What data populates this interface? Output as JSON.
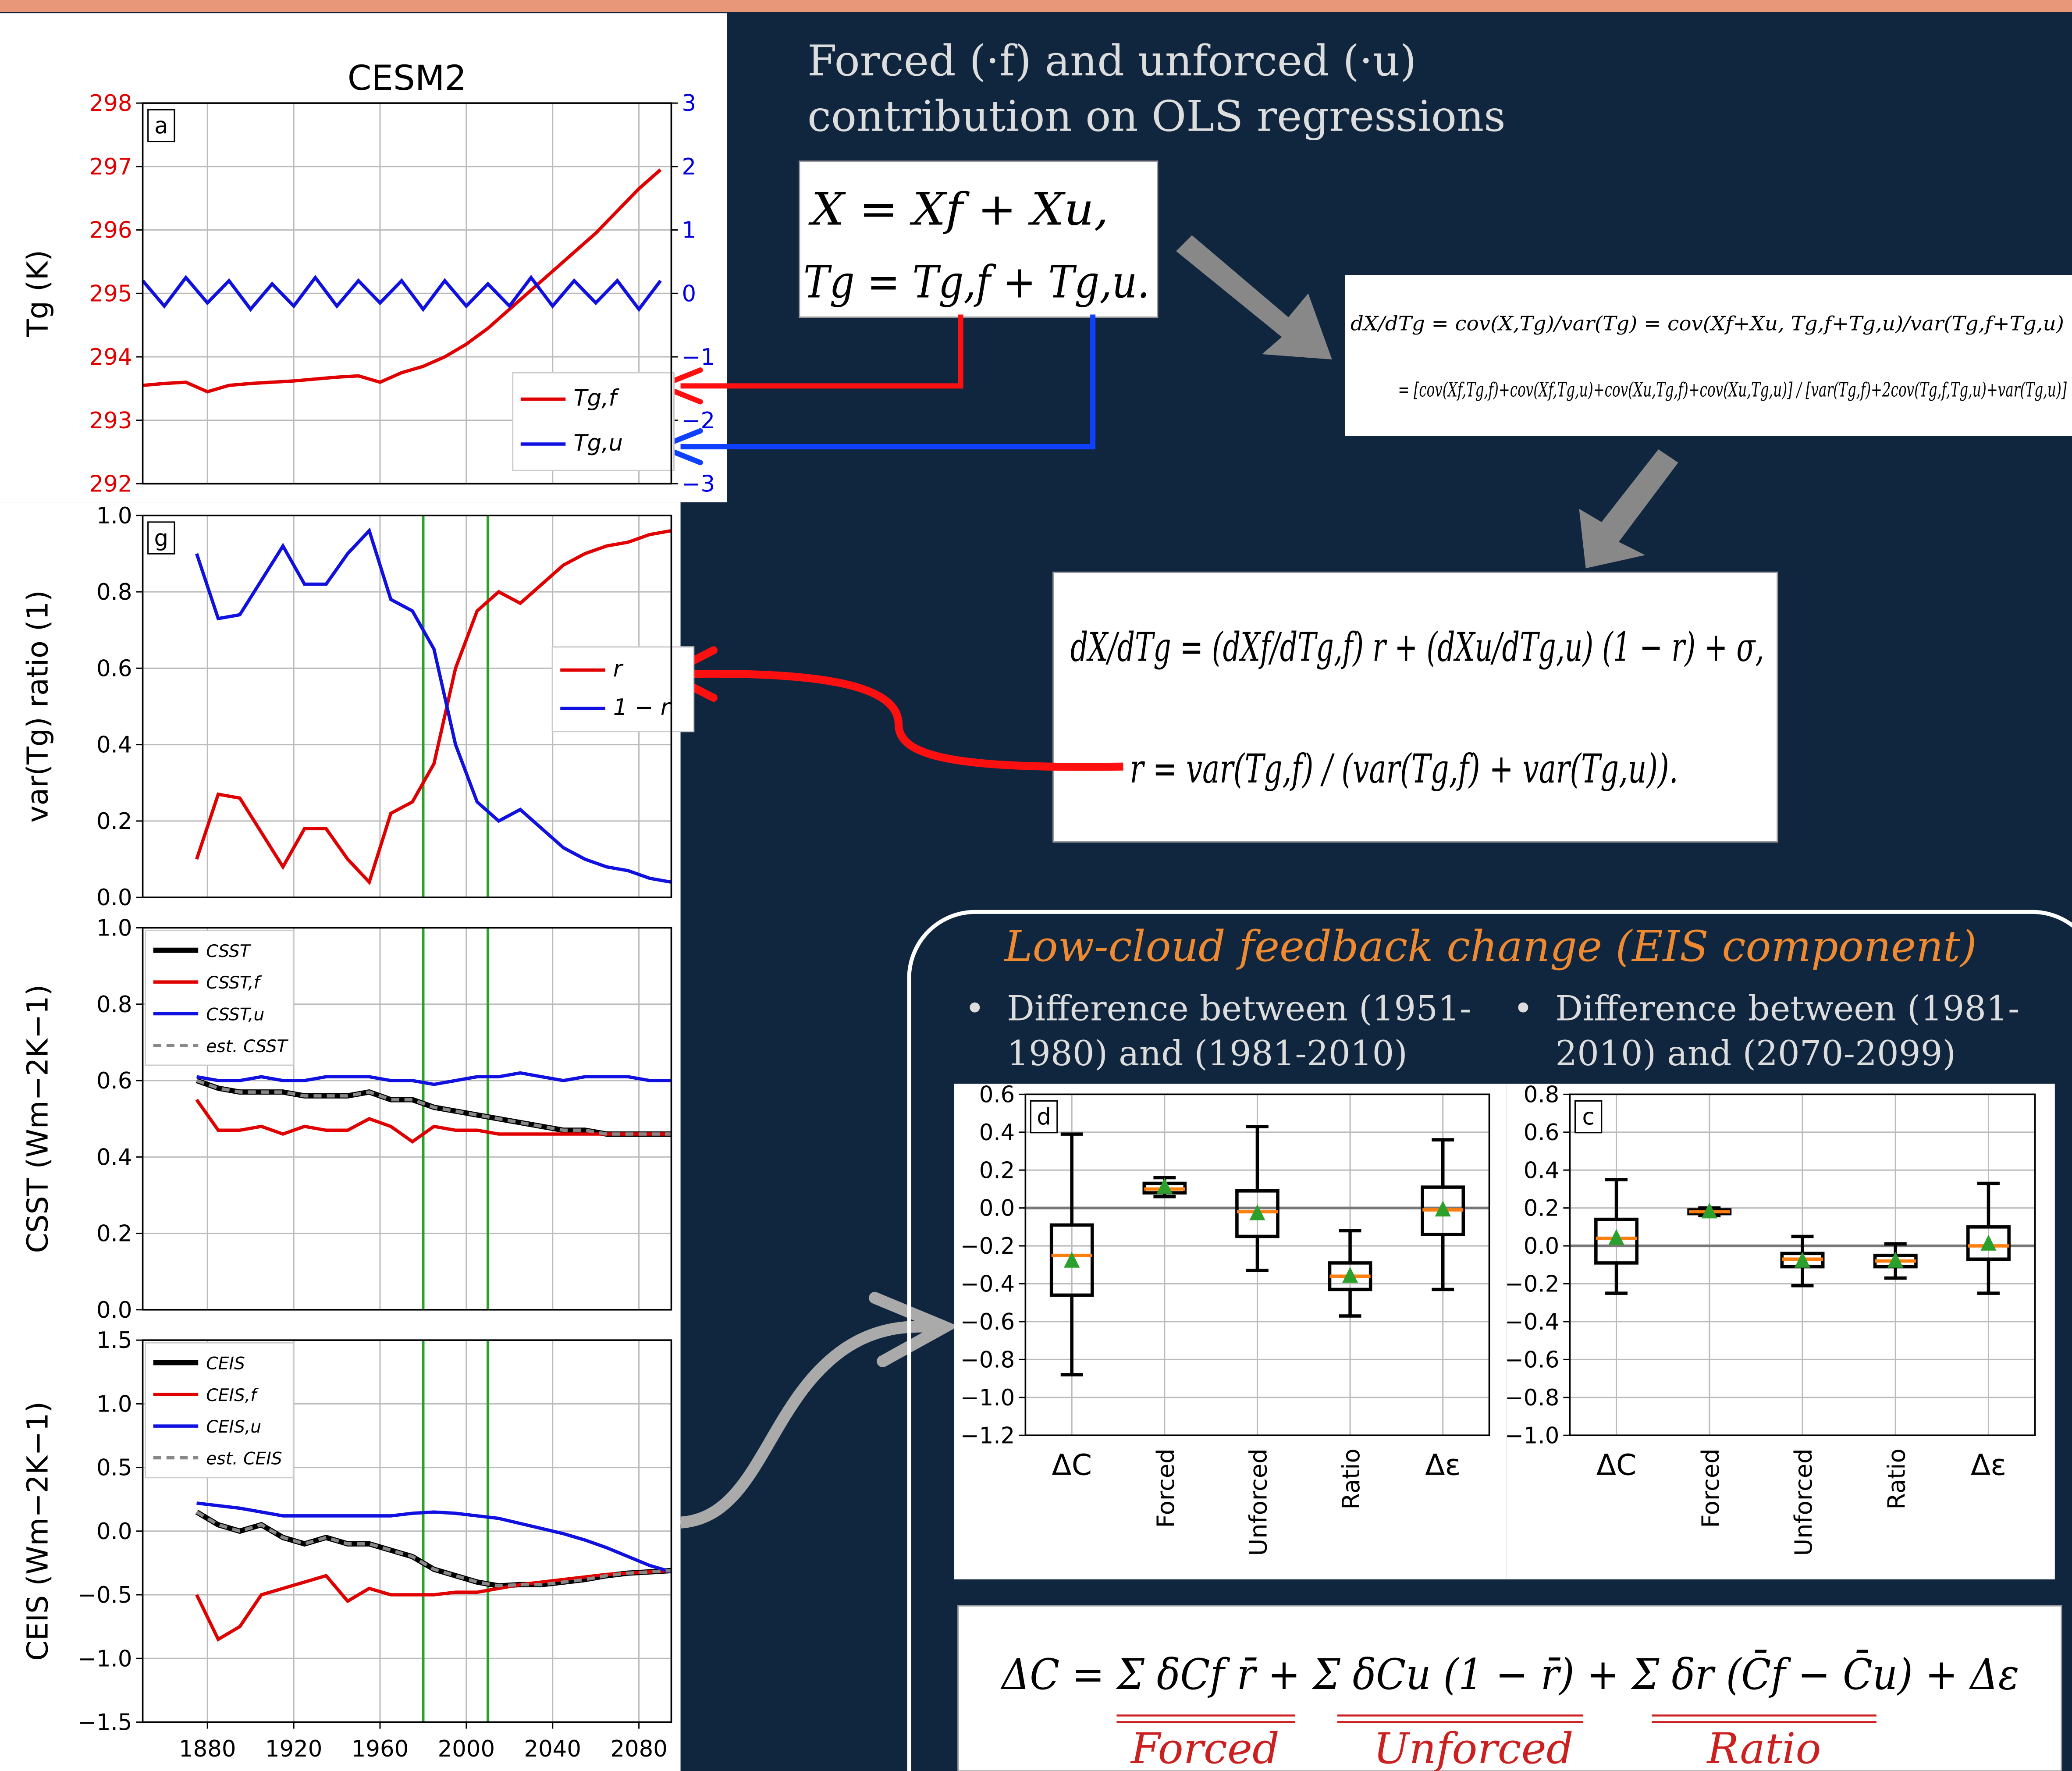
{
  "intro": {
    "lines": [
      "Forced (·f) and unforced (·u)",
      "contribution on OLS regressions"
    ]
  },
  "equations": {
    "decomposition": [
      "X = Xf + Xu,",
      "Tg = Tg,f + Tg,u."
    ],
    "covariance": [
      "dX/dTg = cov(X,Tg)/var(Tg) = cov(Xf+Xu, Tg,f+Tg,u)/var(Tg,f+Tg,u)",
      "= [cov(Xf,Tg,f)+cov(Xf,Tg,u)+cov(Xu,Tg,f)+cov(Xu,Tg,u)] / [var(Tg,f)+2cov(Tg,f,Tg,u)+var(Tg,u)]"
    ],
    "regression": [
      "dX/dTg = (dXf/dTg,f) r + (dXu/dTg,u) (1 − r) + σ,",
      "r = var(Tg,f) / (var(Tg,f) + var(Tg,u))."
    ],
    "delta": "ΔC = Σ δCf r̄ + Σ δCu (1 − r̄) + Σ δr (C̄f − C̄u) + Δε",
    "delta_labels": [
      "Forced",
      "Unforced",
      "Ratio"
    ]
  },
  "panel": {
    "title": "Low-cloud feedback change (EIS component)",
    "bullets": [
      [
        "Difference between (1951-",
        "1980) and (1981-2010)"
      ],
      [
        "Difference between (1981-",
        "2010) and (2070-2099)"
      ]
    ]
  },
  "chart_data": [
    {
      "type": "line",
      "title": "CESM2",
      "panel_label": "a",
      "ylabel": "Tg (K)",
      "legend_position": "lower right",
      "xlim": [
        1850,
        2095
      ],
      "ylim": [
        292,
        298
      ],
      "yticks": [
        292,
        293,
        294,
        295,
        296,
        297,
        298
      ],
      "ytick_color": "#e00000",
      "y2lim": [
        -3,
        3
      ],
      "y2ticks": [
        {
          "value": -3,
          "label": "−3"
        },
        {
          "value": -2,
          "label": "−2"
        },
        {
          "value": -1,
          "label": "−1"
        },
        0,
        1,
        2,
        3
      ],
      "y2tick_color": "#0000e0",
      "grid": true,
      "x": [
        1850,
        1860,
        1870,
        1880,
        1890,
        1900,
        1910,
        1920,
        1930,
        1940,
        1950,
        1960,
        1970,
        1980,
        1990,
        2000,
        2010,
        2020,
        2030,
        2040,
        2050,
        2060,
        2070,
        2080,
        2090
      ],
      "series": [
        {
          "name": "Tg,f",
          "color": "#e00000",
          "values": [
            293.55,
            293.58,
            293.6,
            293.45,
            293.55,
            293.58,
            293.6,
            293.62,
            293.65,
            293.68,
            293.7,
            293.6,
            293.75,
            293.85,
            294.0,
            294.2,
            294.45,
            294.75,
            295.05,
            295.35,
            295.65,
            295.95,
            296.3,
            296.65,
            296.95
          ]
        },
        {
          "name": "Tg,u",
          "color": "#1010e0",
          "axis": "y2",
          "values": [
            0.2,
            -0.2,
            0.25,
            -0.15,
            0.2,
            -0.25,
            0.15,
            -0.2,
            0.25,
            -0.2,
            0.2,
            -0.15,
            0.2,
            -0.25,
            0.2,
            -0.2,
            0.15,
            -0.2,
            0.25,
            -0.2,
            0.2,
            -0.15,
            0.2,
            -0.25,
            0.2
          ]
        }
      ]
    },
    {
      "type": "line",
      "panel_label": "g",
      "ylabel": "var(Tg) ratio (1)",
      "legend_position": "center right",
      "xlim": [
        1850,
        2095
      ],
      "ylim": [
        0,
        1
      ],
      "yticks": [
        {
          "value": 0,
          "label": "0.0"
        },
        0.2,
        0.4,
        0.6,
        0.8,
        {
          "value": 1,
          "label": "1.0"
        }
      ],
      "grid": true,
      "vlines": [
        1980,
        2010
      ],
      "vline_color": "#2ca02c",
      "x": [
        1875,
        1885,
        1895,
        1905,
        1915,
        1925,
        1935,
        1945,
        1955,
        1965,
        1975,
        1985,
        1995,
        2005,
        2015,
        2025,
        2035,
        2045,
        2055,
        2065,
        2075,
        2085,
        2095
      ],
      "series": [
        {
          "name": "r",
          "color": "#e00000",
          "values": [
            0.1,
            0.27,
            0.26,
            0.17,
            0.08,
            0.18,
            0.18,
            0.1,
            0.04,
            0.22,
            0.25,
            0.35,
            0.6,
            0.75,
            0.8,
            0.77,
            0.82,
            0.87,
            0.9,
            0.92,
            0.93,
            0.95,
            0.96
          ]
        },
        {
          "name": "1 − r",
          "color": "#1010e0",
          "values": [
            0.9,
            0.73,
            0.74,
            0.83,
            0.92,
            0.82,
            0.82,
            0.9,
            0.96,
            0.78,
            0.75,
            0.65,
            0.4,
            0.25,
            0.2,
            0.23,
            0.18,
            0.13,
            0.1,
            0.08,
            0.07,
            0.05,
            0.04
          ]
        }
      ]
    },
    {
      "type": "line",
      "ylabel": "CSST (Wm−2K−1)",
      "legend_position": "upper left",
      "xlim": [
        1850,
        2095
      ],
      "ylim": [
        0,
        1
      ],
      "yticks": [
        {
          "value": 0,
          "label": "0.0"
        },
        0.2,
        0.4,
        0.6,
        0.8,
        {
          "value": 1,
          "label": "1.0"
        }
      ],
      "grid": true,
      "vlines": [
        1980,
        2010
      ],
      "vline_color": "#2ca02c",
      "x": [
        1875,
        1885,
        1895,
        1905,
        1915,
        1925,
        1935,
        1945,
        1955,
        1965,
        1975,
        1985,
        1995,
        2005,
        2015,
        2025,
        2035,
        2045,
        2055,
        2065,
        2075,
        2085,
        2095
      ],
      "series": [
        {
          "name": "CSST",
          "color": "#000000",
          "width": 4,
          "values": [
            0.6,
            0.58,
            0.57,
            0.57,
            0.57,
            0.56,
            0.56,
            0.56,
            0.57,
            0.55,
            0.55,
            0.53,
            0.52,
            0.51,
            0.5,
            0.49,
            0.48,
            0.47,
            0.47,
            0.46,
            0.46,
            0.46,
            0.46
          ]
        },
        {
          "name": "CSST,f",
          "color": "#e00000",
          "values": [
            0.55,
            0.47,
            0.47,
            0.48,
            0.46,
            0.48,
            0.47,
            0.47,
            0.5,
            0.48,
            0.44,
            0.48,
            0.47,
            0.47,
            0.46,
            0.46,
            0.46,
            0.46,
            0.46,
            0.46,
            0.46,
            0.46,
            0.46
          ]
        },
        {
          "name": "CSST,u",
          "color": "#1010e0",
          "values": [
            0.61,
            0.6,
            0.6,
            0.61,
            0.6,
            0.6,
            0.61,
            0.61,
            0.61,
            0.6,
            0.6,
            0.59,
            0.6,
            0.61,
            0.61,
            0.62,
            0.61,
            0.6,
            0.61,
            0.61,
            0.61,
            0.6,
            0.6
          ]
        },
        {
          "name": "est. CSST",
          "color": "#888888",
          "dashed": true,
          "values": [
            0.6,
            0.58,
            0.57,
            0.57,
            0.57,
            0.56,
            0.56,
            0.56,
            0.57,
            0.55,
            0.55,
            0.53,
            0.52,
            0.51,
            0.5,
            0.49,
            0.48,
            0.47,
            0.47,
            0.46,
            0.46,
            0.46,
            0.46
          ]
        }
      ]
    },
    {
      "type": "line",
      "ylabel": "CEIS (Wm−2K−1)",
      "legend_position": "upper left",
      "xlim": [
        1850,
        2095
      ],
      "ylim": [
        -1.5,
        1.5
      ],
      "yticks": [
        {
          "value": -1.5,
          "label": "−1.5"
        },
        {
          "value": -1,
          "label": "−1.0"
        },
        {
          "value": -0.5,
          "label": "−0.5"
        },
        {
          "value": 0,
          "label": "0.0"
        },
        0.5,
        {
          "value": 1,
          "label": "1.0"
        },
        1.5
      ],
      "xticks": [
        1880,
        1920,
        1960,
        2000,
        2040,
        2080
      ],
      "grid": true,
      "vlines": [
        1980,
        2010
      ],
      "vline_color": "#2ca02c",
      "x": [
        1875,
        1885,
        1895,
        1905,
        1915,
        1925,
        1935,
        1945,
        1955,
        1965,
        1975,
        1985,
        1995,
        2005,
        2015,
        2025,
        2035,
        2045,
        2055,
        2065,
        2075,
        2085,
        2095
      ],
      "series": [
        {
          "name": "CEIS",
          "color": "#000000",
          "width": 4,
          "values": [
            0.15,
            0.05,
            0.0,
            0.05,
            -0.05,
            -0.1,
            -0.05,
            -0.1,
            -0.1,
            -0.15,
            -0.2,
            -0.3,
            -0.35,
            -0.4,
            -0.43,
            -0.42,
            -0.42,
            -0.4,
            -0.38,
            -0.35,
            -0.33,
            -0.32,
            -0.31
          ]
        },
        {
          "name": "CEIS,f",
          "color": "#e00000",
          "values": [
            -0.5,
            -0.85,
            -0.75,
            -0.5,
            -0.45,
            -0.4,
            -0.35,
            -0.55,
            -0.45,
            -0.5,
            -0.5,
            -0.5,
            -0.48,
            -0.48,
            -0.45,
            -0.42,
            -0.4,
            -0.38,
            -0.36,
            -0.34,
            -0.33,
            -0.32,
            -0.31
          ]
        },
        {
          "name": "CEIS,u",
          "color": "#1010e0",
          "values": [
            0.22,
            0.2,
            0.18,
            0.15,
            0.12,
            0.12,
            0.12,
            0.12,
            0.12,
            0.12,
            0.14,
            0.15,
            0.14,
            0.12,
            0.1,
            0.06,
            0.02,
            -0.02,
            -0.07,
            -0.13,
            -0.2,
            -0.27,
            -0.32
          ]
        },
        {
          "name": "est. CEIS",
          "color": "#888888",
          "dashed": true,
          "values": [
            0.15,
            0.05,
            0.0,
            0.05,
            -0.05,
            -0.1,
            -0.05,
            -0.1,
            -0.1,
            -0.15,
            -0.2,
            -0.3,
            -0.35,
            -0.4,
            -0.43,
            -0.42,
            -0.42,
            -0.4,
            -0.38,
            -0.35,
            -0.33,
            -0.32,
            -0.31
          ]
        }
      ]
    },
    {
      "type": "box",
      "panel_label": "d",
      "categories": [
        "ΔC",
        "Forced",
        "Unforced",
        "Ratio",
        "Δε"
      ],
      "label_rotation": [
        0,
        90,
        90,
        90,
        0
      ],
      "ylim": [
        -1.2,
        0.6
      ],
      "yticks": [
        {
          "value": -1.2,
          "label": "−1.2"
        },
        {
          "value": -1,
          "label": "−1.0"
        },
        {
          "value": -0.8,
          "label": "−0.8"
        },
        {
          "value": -0.6,
          "label": "−0.6"
        },
        {
          "value": -0.4,
          "label": "−0.4"
        },
        {
          "value": -0.2,
          "label": "−0.2"
        },
        {
          "value": 0,
          "label": "0.0"
        },
        0.2,
        0.4,
        0.6
      ],
      "grid": true,
      "hline": 0,
      "stats": [
        {
          "whislo": -0.88,
          "q1": -0.46,
          "med": -0.25,
          "q3": -0.09,
          "whishi": 0.39,
          "mean": -0.28
        },
        {
          "whislo": 0.06,
          "q1": 0.08,
          "med": 0.1,
          "q3": 0.13,
          "whishi": 0.16,
          "mean": 0.11
        },
        {
          "whislo": -0.33,
          "q1": -0.15,
          "med": -0.02,
          "q3": 0.09,
          "whishi": 0.43,
          "mean": -0.03
        },
        {
          "whislo": -0.57,
          "q1": -0.43,
          "med": -0.36,
          "q3": -0.29,
          "whishi": -0.12,
          "mean": -0.36
        },
        {
          "whislo": -0.43,
          "q1": -0.14,
          "med": -0.01,
          "q3": 0.11,
          "whishi": 0.36,
          "mean": -0.01
        }
      ]
    },
    {
      "type": "box",
      "panel_label": "c",
      "categories": [
        "ΔC",
        "Forced",
        "Unforced",
        "Ratio",
        "Δε"
      ],
      "label_rotation": [
        0,
        90,
        90,
        90,
        0
      ],
      "ylim": [
        -1.0,
        0.8
      ],
      "yticks": [
        {
          "value": -1,
          "label": "−1.0"
        },
        {
          "value": -0.8,
          "label": "−0.8"
        },
        {
          "value": -0.6,
          "label": "−0.6"
        },
        {
          "value": -0.4,
          "label": "−0.4"
        },
        {
          "value": -0.2,
          "label": "−0.2"
        },
        {
          "value": 0,
          "label": "0.0"
        },
        0.2,
        0.4,
        0.6,
        0.8
      ],
      "grid": true,
      "hline": 0,
      "stats": [
        {
          "whislo": -0.25,
          "q1": -0.09,
          "med": 0.04,
          "q3": 0.14,
          "whishi": 0.35,
          "mean": 0.04
        },
        {
          "whislo": 0.16,
          "q1": 0.17,
          "med": 0.18,
          "q3": 0.19,
          "whishi": 0.2,
          "mean": 0.18
        },
        {
          "whislo": -0.21,
          "q1": -0.11,
          "med": -0.07,
          "q3": -0.04,
          "whishi": 0.05,
          "mean": -0.08
        },
        {
          "whislo": -0.17,
          "q1": -0.11,
          "med": -0.08,
          "q3": -0.05,
          "whishi": 0.01,
          "mean": -0.08
        },
        {
          "whislo": -0.25,
          "q1": -0.07,
          "med": 0.0,
          "q3": 0.1,
          "whishi": 0.33,
          "mean": 0.01
        }
      ]
    }
  ]
}
